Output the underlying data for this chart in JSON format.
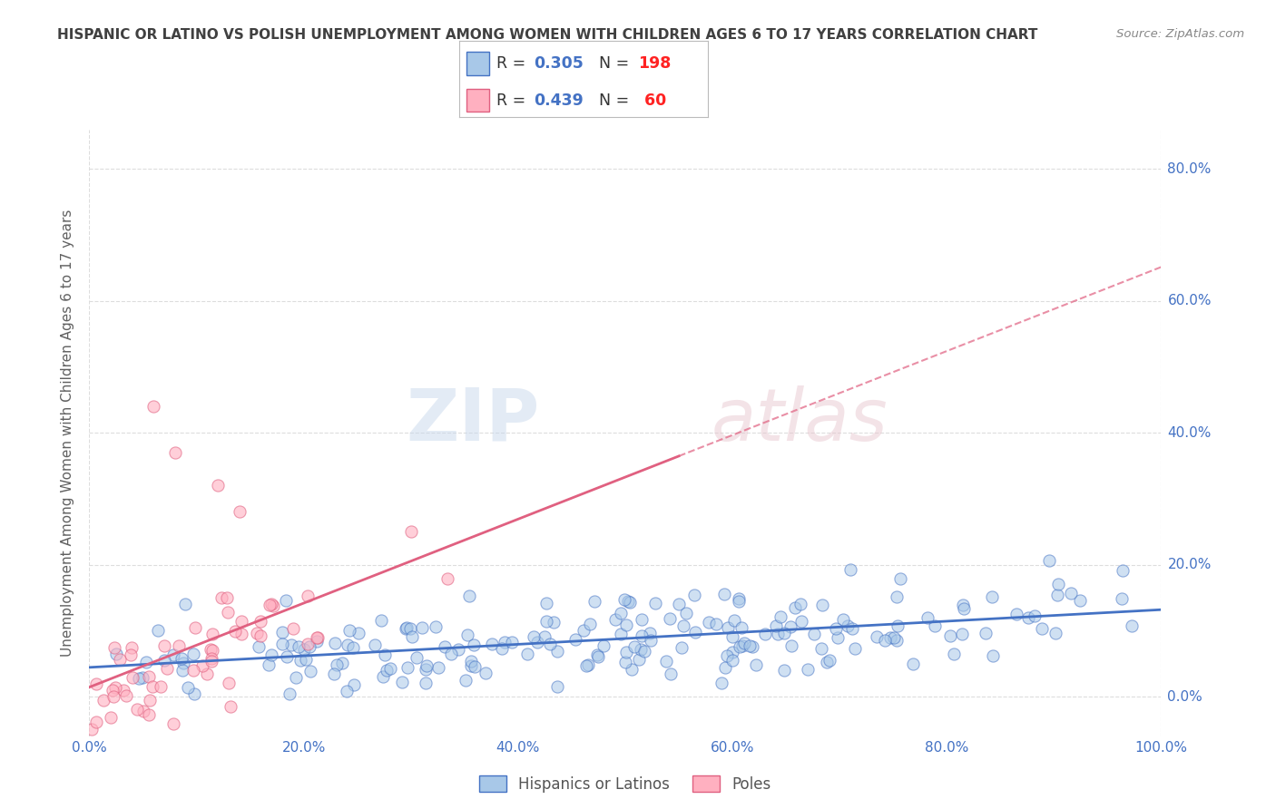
{
  "title": "HISPANIC OR LATINO VS POLISH UNEMPLOYMENT AMONG WOMEN WITH CHILDREN AGES 6 TO 17 YEARS CORRELATION CHART",
  "source": "Source: ZipAtlas.com",
  "ylabel": "Unemployment Among Women with Children Ages 6 to 17 years",
  "xlim": [
    0,
    1.0
  ],
  "ylim": [
    -0.06,
    0.86
  ],
  "xticks": [
    0.0,
    0.2,
    0.4,
    0.6,
    0.8,
    1.0
  ],
  "xticklabels": [
    "0.0%",
    "20.0%",
    "40.0%",
    "60.0%",
    "80.0%",
    "100.0%"
  ],
  "yticks": [
    0.0,
    0.2,
    0.4,
    0.6,
    0.8
  ],
  "yticklabels": [
    "0.0%",
    "20.0%",
    "40.0%",
    "60.0%",
    "80.0%"
  ],
  "legend_r1": "0.305",
  "legend_n1": "198",
  "legend_r2": "0.439",
  "legend_n2": "60",
  "legend_label1": "Hispanics or Latinos",
  "legend_label2": "Poles",
  "color_blue": "#A8C8E8",
  "color_pink": "#FFB0C0",
  "color_blue_line": "#4472C4",
  "color_pink_line": "#E06080",
  "watermark_zip": "ZIP",
  "watermark_atlas": "atlas",
  "background_color": "#FFFFFF",
  "grid_color": "#DDDDDD",
  "title_color": "#404040",
  "axis_label_color": "#606060",
  "tick_color": "#4472C4",
  "r_value_color": "#4472C4",
  "n_value_color": "#FF2222",
  "blue_scatter_alpha": 0.55,
  "pink_scatter_alpha": 0.6,
  "blue_r": 0.305,
  "blue_n": 198,
  "pink_r": 0.439,
  "pink_n": 60,
  "seed": 42
}
